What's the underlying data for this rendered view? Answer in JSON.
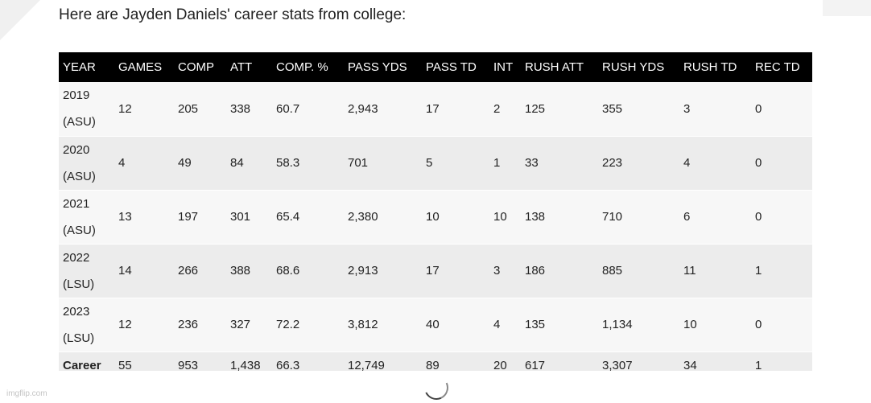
{
  "intro_text": "Here are Jayden Daniels' career stats from college:",
  "table": {
    "headers": [
      "YEAR",
      "GAMES",
      "COMP",
      "ATT",
      "COMP. %",
      "PASS YDS",
      "PASS TD",
      "INT",
      "RUSH ATT",
      "RUSH YDS",
      "RUSH TD",
      "REC TD"
    ],
    "rows": [
      {
        "year": "2019",
        "school": "(ASU)",
        "cells": [
          "12",
          "205",
          "338",
          "60.7",
          "2,943",
          "17",
          "2",
          "125",
          "355",
          "3",
          "0"
        ]
      },
      {
        "year": "2020",
        "school": "(ASU)",
        "cells": [
          "4",
          "49",
          "84",
          "58.3",
          "701",
          "5",
          "1",
          "33",
          "223",
          "4",
          "0"
        ]
      },
      {
        "year": "2021",
        "school": "(ASU)",
        "cells": [
          "13",
          "197",
          "301",
          "65.4",
          "2,380",
          "10",
          "10",
          "138",
          "710",
          "6",
          "0"
        ]
      },
      {
        "year": "2022",
        "school": "(LSU)",
        "cells": [
          "14",
          "266",
          "388",
          "68.6",
          "2,913",
          "17",
          "3",
          "186",
          "885",
          "11",
          "1"
        ]
      },
      {
        "year": "2023",
        "school": "(LSU)",
        "cells": [
          "12",
          "236",
          "327",
          "72.2",
          "3,812",
          "40",
          "4",
          "135",
          "1,134",
          "10",
          "0"
        ]
      }
    ],
    "career": {
      "label": "Career",
      "cells": [
        "55",
        "953",
        "1,438",
        "66.3",
        "12,749",
        "89",
        "20",
        "617",
        "3,307",
        "34",
        "1"
      ]
    }
  },
  "watermark": "imgflip.com",
  "icons": {
    "loading": "loading-spinner-icon"
  }
}
